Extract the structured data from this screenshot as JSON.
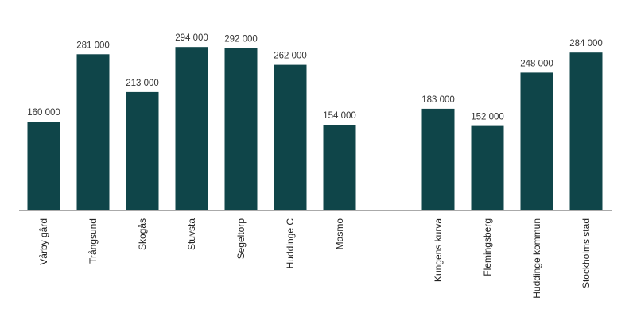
{
  "chart_data": {
    "type": "bar",
    "categories": [
      "Vårby gård",
      "Trångsund",
      "Skogås",
      "Stuvsta",
      "Segeltorp",
      "Huddinge C",
      "Masmo",
      null,
      "Kungens kurva",
      "Flemingsberg",
      "Huddinge kommun",
      "Stockholms stad"
    ],
    "values": [
      160000,
      281000,
      213000,
      294000,
      292000,
      262000,
      154000,
      null,
      183000,
      152000,
      248000,
      284000
    ],
    "value_labels": [
      "160 000",
      "281 000",
      "213 000",
      "294 000",
      "292 000",
      "262 000",
      "154 000",
      null,
      "183 000",
      "152 000",
      "248 000",
      "284 000"
    ],
    "color": "#0f4549",
    "ylim": [
      0,
      300000
    ]
  }
}
